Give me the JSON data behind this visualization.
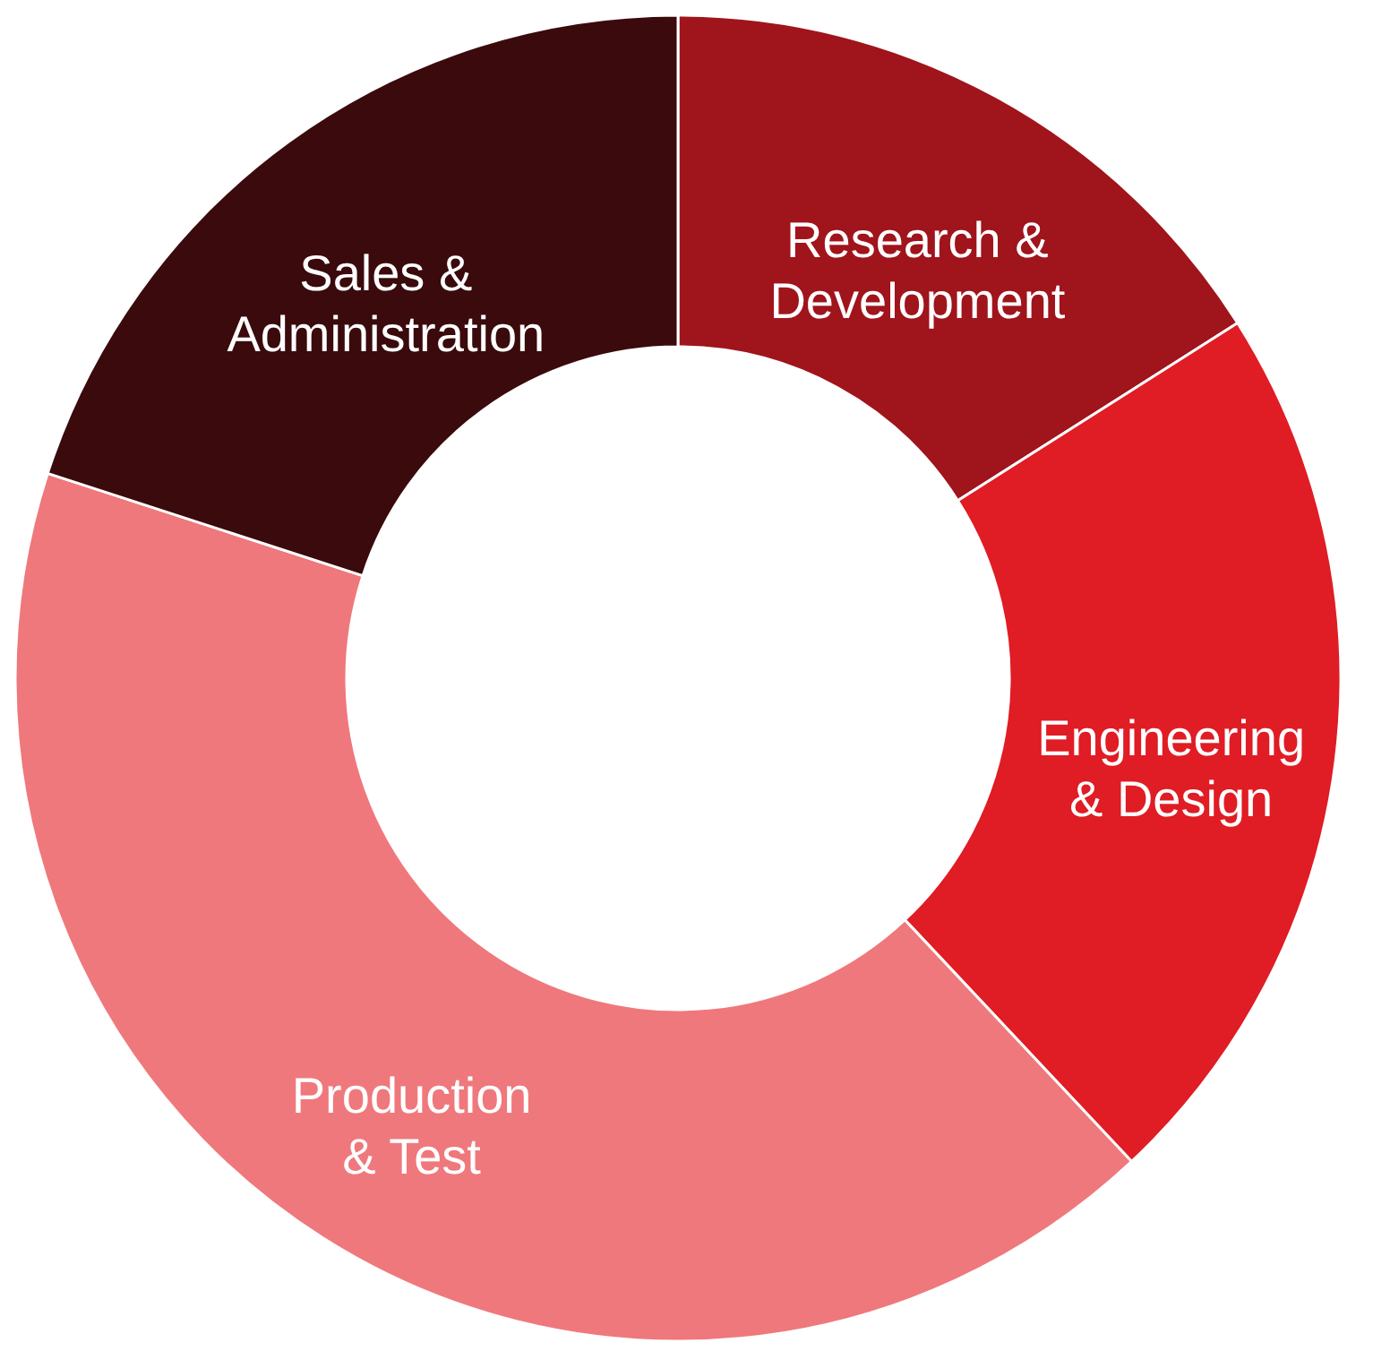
{
  "chart_data": {
    "type": "donut",
    "categories": [
      "Research & Development",
      "Engineering & Design",
      "Production & Test",
      "Sales & Administration"
    ],
    "values": [
      16,
      22,
      42,
      20
    ],
    "colors": [
      "#a0141c",
      "#e01c24",
      "#ef787c",
      "#3a0a0c"
    ],
    "legend": false
  }
}
